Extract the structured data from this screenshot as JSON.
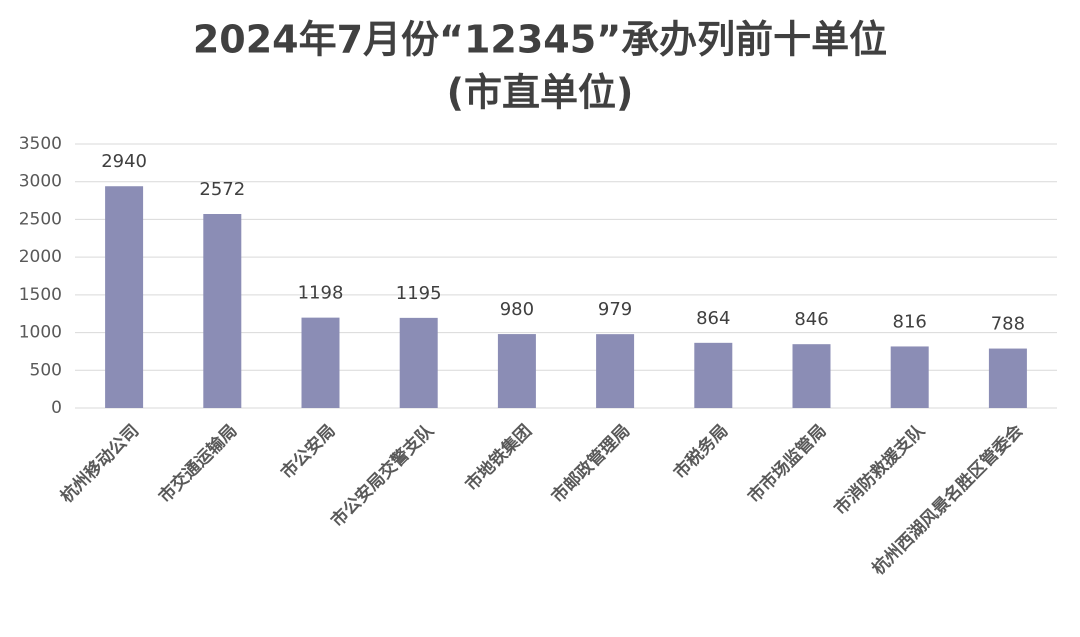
{
  "chart_data": {
    "type": "bar",
    "title": "2024年7月份“12345”承办列前十单位",
    "subtitle": "(市直单位)",
    "categories": [
      "杭州移动公司",
      "市交通运输局",
      "市公安局",
      "市公安局交警支队",
      "市地铁集团",
      "市邮政管理局",
      "市税务局",
      "市市场监管局",
      "市消防救援支队",
      "杭州西湖风景名胜区管委会"
    ],
    "values": [
      2940,
      2572,
      1198,
      1195,
      980,
      979,
      864,
      846,
      816,
      788
    ],
    "color": "#8b8db5",
    "ylim": [
      0,
      3500
    ],
    "yticks": [
      0,
      500,
      1000,
      1500,
      2000,
      2500,
      3000,
      3500
    ],
    "grid": true
  }
}
